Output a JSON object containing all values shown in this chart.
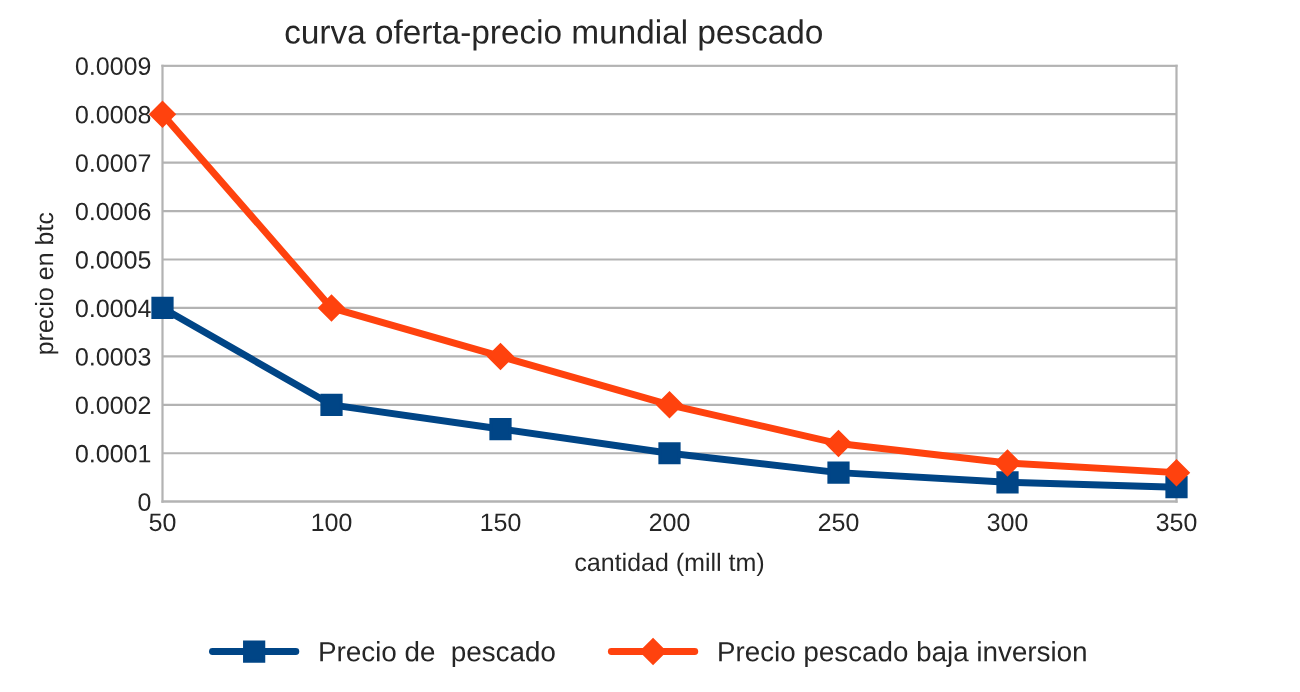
{
  "chart_data": {
    "type": "line",
    "title": "curva oferta-precio mundial pescado",
    "xlabel": "cantidad (mill tm)",
    "ylabel": "precio en btc",
    "x": [
      50,
      100,
      150,
      200,
      250,
      300,
      350
    ],
    "series": [
      {
        "name": "Precio de  pescado",
        "color": "#004586",
        "marker": "square",
        "values": [
          0.0004,
          0.0002,
          0.00015,
          0.0001,
          6e-05,
          4e-05,
          3e-05
        ]
      },
      {
        "name": "Precio pescado baja inversion",
        "color": "#ff420e",
        "marker": "diamond",
        "values": [
          0.0008,
          0.0004,
          0.0003,
          0.0002,
          0.00012,
          8e-05,
          6e-05
        ]
      }
    ],
    "xlim": [
      50,
      350
    ],
    "xticks": [
      50,
      100,
      150,
      200,
      250,
      300,
      350
    ],
    "ylim": [
      0,
      0.0009
    ],
    "yticks": [
      0,
      0.0001,
      0.0002,
      0.0003,
      0.0004,
      0.0005,
      0.0006,
      0.0007,
      0.0008,
      0.0009
    ],
    "grid": "y",
    "legend": "bottom",
    "line_style": "solid"
  }
}
